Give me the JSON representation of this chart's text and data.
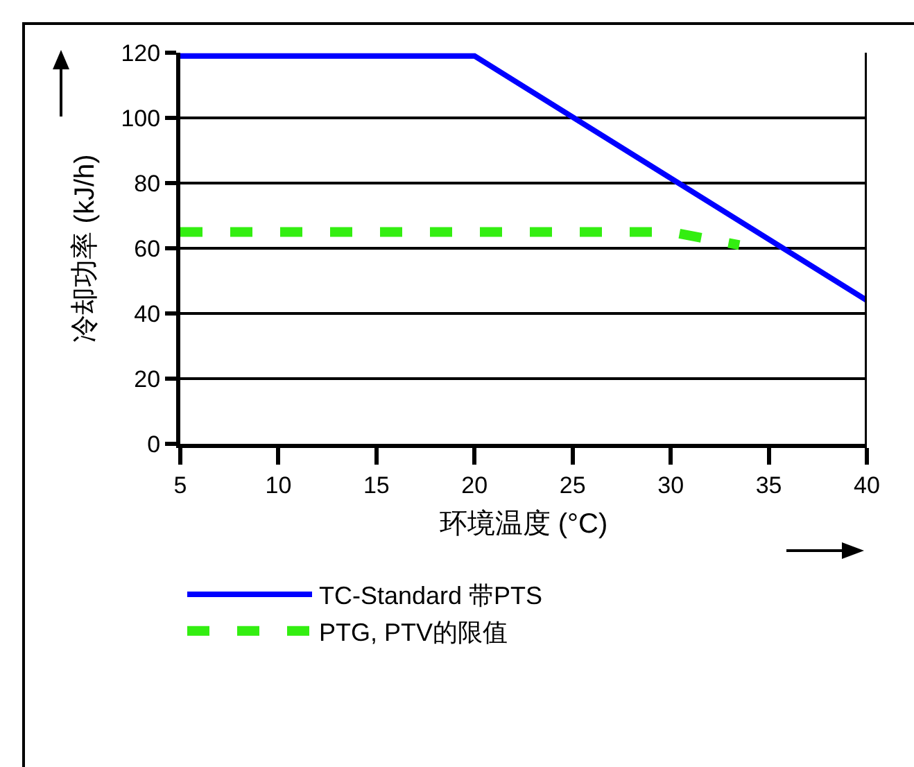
{
  "chart_data": {
    "type": "line",
    "xlabel": "环境温度 (°C)",
    "ylabel": "冷却功率 (kJ/h)",
    "xlim": [
      5,
      40
    ],
    "xticks": [
      5,
      10,
      15,
      20,
      25,
      30,
      35,
      40
    ],
    "ylim": [
      0,
      120
    ],
    "yticks": [
      0,
      20,
      40,
      60,
      80,
      100,
      120
    ],
    "grid": "y",
    "legend": "bottom",
    "marker": "none",
    "series": [
      {
        "name": "TC-Standard 带PTS",
        "color": "#0000ff",
        "x": [
          5,
          20,
          40
        ],
        "values": [
          119,
          119,
          44
        ],
        "line_style": "solid"
      },
      {
        "name": "PTG, PTV的限值",
        "color": "#33ee11",
        "x": [
          5,
          30,
          33.5
        ],
        "values": [
          65,
          65,
          61
        ],
        "line_style": "dashed"
      }
    ]
  }
}
